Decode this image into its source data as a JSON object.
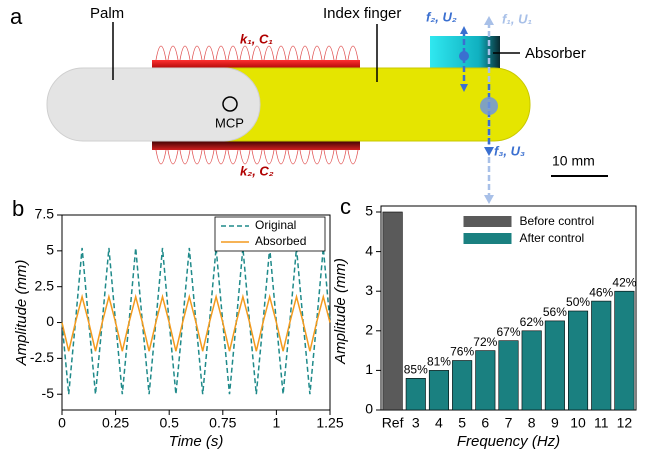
{
  "panels": [
    "a",
    "b",
    "c"
  ],
  "diagram": {
    "palm": "Palm",
    "index_finger": "Index finger",
    "spring_top": "k₁, C₁",
    "spring_bottom": "k₂, C₂",
    "mcp": "MCP",
    "absorber": "Absorber",
    "force_1": "f₁, U₁",
    "force_2": "f₂, U₂",
    "force_3": "f₃, U₃",
    "scale_bar": "10 mm"
  },
  "chart_data": [
    {
      "type": "line",
      "xlabel": "Time (s)",
      "ylabel": "Amplitude (mm)",
      "x": [
        0,
        0.03125,
        0.0625,
        0.09375,
        0.125,
        0.15625,
        0.1875,
        0.21875,
        0.25,
        0.28125,
        0.3125,
        0.34375,
        0.375,
        0.40625,
        0.4375,
        0.46875,
        0.5,
        0.53125,
        0.5625,
        0.59375,
        0.625,
        0.65625,
        0.6875,
        0.71875,
        0.75,
        0.78125,
        0.8125,
        0.84375,
        0.875,
        0.90625,
        0.9375,
        0.96875,
        1,
        1.03125,
        1.0625,
        1.09375,
        1.125,
        1.15625,
        1.1875,
        1.21875,
        1.25
      ],
      "series": [
        {
          "name": "Original",
          "color": "#1f8a8a",
          "style": "dashed",
          "values": [
            0,
            -5,
            0,
            5.2,
            0,
            -5,
            0,
            5.2,
            0,
            -5,
            0,
            5.2,
            0,
            -5,
            0,
            5.2,
            0,
            -5,
            0,
            5.2,
            0,
            -5,
            0,
            5.2,
            0,
            -5,
            0,
            5.2,
            0,
            -5,
            0,
            5.2,
            0,
            -5,
            0,
            5.2,
            0,
            -5,
            0,
            5.2,
            0
          ]
        },
        {
          "name": "Absorbed",
          "color": "#f39a1e",
          "style": "solid",
          "values": [
            0,
            -2,
            0,
            1.8,
            0,
            -2,
            0,
            1.8,
            0,
            -2,
            0,
            1.8,
            0,
            -2,
            0,
            1.8,
            0,
            -2,
            0,
            1.8,
            0,
            -2,
            0,
            1.8,
            0,
            -2,
            0,
            1.8,
            0,
            -2,
            0,
            1.8,
            0,
            -2,
            0,
            1.8,
            0,
            -2,
            0,
            1.8,
            0
          ]
        }
      ],
      "xlim": [
        0,
        1.25
      ],
      "xticks": [
        0,
        0.25,
        0.5,
        0.75,
        1,
        1.25
      ],
      "ylim": [
        -6.1,
        7.5
      ],
      "yticks": [
        -5,
        -2.5,
        0,
        2.5,
        5,
        7.5
      ],
      "legend": "upper right"
    },
    {
      "type": "bar",
      "xlabel": "Frequency (Hz)",
      "ylabel": "Amplitude (mm)",
      "categories": [
        "Ref",
        "3",
        "4",
        "5",
        "6",
        "7",
        "8",
        "9",
        "10",
        "11",
        "12"
      ],
      "series": [
        {
          "name": "Before control",
          "color": "#5a5a5a",
          "values": [
            5,
            null,
            null,
            null,
            null,
            null,
            null,
            null,
            null,
            null,
            null
          ]
        },
        {
          "name": "After control",
          "color": "#1a8080",
          "values": [
            null,
            0.8,
            1,
            1.25,
            1.5,
            1.75,
            2,
            2.25,
            2.5,
            2.75,
            3
          ]
        }
      ],
      "bar_annotations": [
        null,
        "85%",
        "81%",
        "76%",
        "72%",
        "67%",
        "62%",
        "56%",
        "50%",
        "46%",
        "42%"
      ],
      "ylim": [
        0,
        5
      ],
      "yticks": [
        0,
        1,
        2,
        3,
        4,
        5
      ],
      "legend": "upper center"
    }
  ]
}
